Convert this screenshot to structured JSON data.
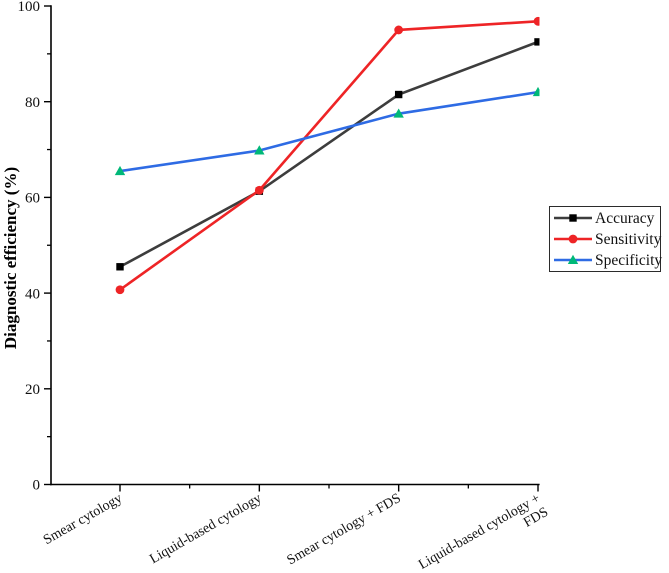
{
  "chart_data": {
    "type": "line",
    "title": "",
    "xlabel": "",
    "ylabel": "Diagnostic efficiency (%)",
    "ylim": [
      0,
      100
    ],
    "ytick_major": [
      0,
      20,
      40,
      60,
      80,
      100
    ],
    "ytick_minor": [
      10,
      30,
      50,
      70,
      90
    ],
    "grid": false,
    "legend_position": "right",
    "categories": [
      "Smear cytology",
      "Liquid-based cytology",
      "Smear cytology + FDS",
      "Liquid-based cytology + FDS"
    ],
    "categories_display": [
      [
        "Smear cytology"
      ],
      [
        "Liquid-based cytology"
      ],
      [
        "Smear cytology + FDS"
      ],
      [
        "Liquid-based cytology +",
        "FDS"
      ]
    ],
    "series": [
      {
        "name": "Accuracy",
        "values": [
          45.5,
          61.3,
          81.5,
          92.5
        ],
        "line_color": "#3d3d3d",
        "marker": "square",
        "marker_color": "#000000"
      },
      {
        "name": "Sensitivity",
        "values": [
          40.7,
          61.5,
          95.0,
          96.8
        ],
        "line_color": "#ee2426",
        "marker": "circle",
        "marker_color": "#ee2426"
      },
      {
        "name": "Specificity",
        "values": [
          65.5,
          69.8,
          77.5,
          82.0
        ],
        "line_color": "#2e6be4",
        "marker": "triangle",
        "marker_color": "#00b878"
      }
    ],
    "axis_color": "#000000"
  }
}
